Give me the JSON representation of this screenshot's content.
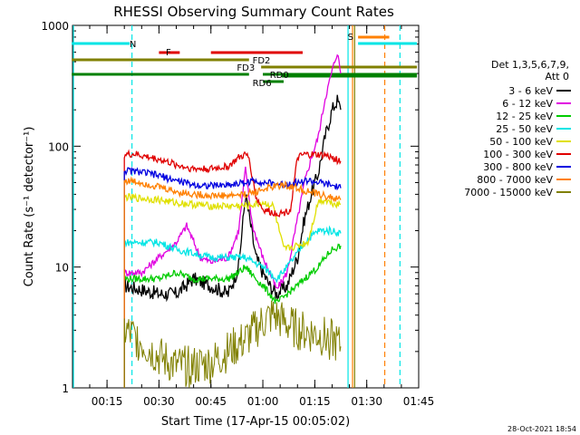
{
  "chart_data": {
    "type": "line",
    "title": "RHESSI Observing Summary Count Rates",
    "xlabel": "Start Time (17-Apr-15 00:05:02)",
    "ylabel": "Count Rate (s⁻¹ detector⁻¹)",
    "yscale": "log",
    "ylim": [
      1,
      1000
    ],
    "xlim_minutes": [
      5.03,
      105
    ],
    "x_ticks": [
      {
        "label": "00:15",
        "min": 15
      },
      {
        "label": "00:30",
        "min": 30
      },
      {
        "label": "00:45",
        "min": 45
      },
      {
        "label": "01:00",
        "min": 60
      },
      {
        "label": "01:15",
        "min": 75
      },
      {
        "label": "01:30",
        "min": 90
      },
      {
        "label": "01:45",
        "min": 105
      }
    ],
    "y_ticks": [
      {
        "label": "1",
        "v": 1
      },
      {
        "label": "10",
        "v": 10
      },
      {
        "label": "100",
        "v": 100
      },
      {
        "label": "1000",
        "v": 1000
      }
    ],
    "legend_header": [
      "Det 1,3,5,6,7,9,",
      "Att 0"
    ],
    "series": [
      {
        "name": "3 - 6 keV",
        "color": "#000000",
        "points": [
          [
            20,
            7
          ],
          [
            25,
            6.5
          ],
          [
            30,
            6
          ],
          [
            35,
            6
          ],
          [
            40,
            8
          ],
          [
            45,
            7
          ],
          [
            50,
            6
          ],
          [
            53,
            10
          ],
          [
            55,
            40
          ],
          [
            58,
            12
          ],
          [
            60,
            9
          ],
          [
            62,
            7
          ],
          [
            64,
            6
          ],
          [
            67,
            7
          ],
          [
            70,
            12
          ],
          [
            72,
            25
          ],
          [
            74,
            40
          ],
          [
            76,
            60
          ],
          [
            78,
            120
          ],
          [
            80,
            200
          ],
          [
            81.5,
            240
          ],
          [
            82.5,
            200
          ]
        ]
      },
      {
        "name": "6 - 12 keV",
        "color": "#e000e0",
        "points": [
          [
            20,
            9
          ],
          [
            25,
            9
          ],
          [
            30,
            12
          ],
          [
            35,
            16
          ],
          [
            38,
            22
          ],
          [
            42,
            12
          ],
          [
            45,
            11
          ],
          [
            50,
            12
          ],
          [
            53,
            20
          ],
          [
            55,
            65
          ],
          [
            57,
            22
          ],
          [
            60,
            12
          ],
          [
            62,
            9
          ],
          [
            64,
            6.5
          ],
          [
            67,
            9
          ],
          [
            70,
            25
          ],
          [
            72,
            50
          ],
          [
            74,
            80
          ],
          [
            76,
            120
          ],
          [
            78,
            250
          ],
          [
            80,
            420
          ],
          [
            81.5,
            600
          ],
          [
            82.5,
            400
          ]
        ]
      },
      {
        "name": "12 - 25 keV",
        "color": "#00cc00",
        "points": [
          [
            20,
            8
          ],
          [
            25,
            8
          ],
          [
            30,
            8
          ],
          [
            35,
            9
          ],
          [
            40,
            8
          ],
          [
            45,
            8
          ],
          [
            50,
            8
          ],
          [
            53,
            9
          ],
          [
            55,
            10
          ],
          [
            58,
            8
          ],
          [
            60,
            7
          ],
          [
            62,
            6
          ],
          [
            64,
            5
          ],
          [
            67,
            6
          ],
          [
            70,
            7
          ],
          [
            72,
            8
          ],
          [
            74,
            9
          ],
          [
            76,
            10
          ],
          [
            78,
            12
          ],
          [
            80,
            14
          ],
          [
            82.5,
            15
          ]
        ]
      },
      {
        "name": "25 - 50 keV",
        "color": "#00e5e5",
        "points": [
          [
            20,
            16
          ],
          [
            25,
            16
          ],
          [
            30,
            16
          ],
          [
            35,
            14
          ],
          [
            40,
            13
          ],
          [
            45,
            12
          ],
          [
            50,
            12
          ],
          [
            55,
            12
          ],
          [
            60,
            10
          ],
          [
            62,
            9
          ],
          [
            64,
            8
          ],
          [
            67,
            10
          ],
          [
            70,
            13
          ],
          [
            72,
            16
          ],
          [
            74,
            18
          ],
          [
            76,
            20
          ],
          [
            78,
            20
          ],
          [
            80,
            20
          ],
          [
            82.5,
            19
          ]
        ]
      },
      {
        "name": "50 - 100 keV",
        "color": "#e0e000",
        "points": [
          [
            20,
            38
          ],
          [
            25,
            37
          ],
          [
            30,
            36
          ],
          [
            35,
            34
          ],
          [
            40,
            33
          ],
          [
            45,
            32
          ],
          [
            50,
            32
          ],
          [
            55,
            32
          ],
          [
            58,
            33
          ],
          [
            60,
            34
          ],
          [
            63,
            32
          ],
          [
            66,
            14
          ],
          [
            70,
            15
          ],
          [
            73,
            16
          ],
          [
            76,
            35
          ],
          [
            78,
            36
          ],
          [
            80,
            34
          ],
          [
            82.5,
            33
          ]
        ]
      },
      {
        "name": "100 - 300 keV",
        "color": "#e00000",
        "points": [
          [
            20,
            85
          ],
          [
            23,
            86
          ],
          [
            26,
            82
          ],
          [
            30,
            78
          ],
          [
            35,
            70
          ],
          [
            40,
            65
          ],
          [
            45,
            65
          ],
          [
            50,
            68
          ],
          [
            53,
            80
          ],
          [
            55,
            85
          ],
          [
            56,
            80
          ],
          [
            58,
            38
          ],
          [
            60,
            30
          ],
          [
            63,
            28
          ],
          [
            66,
            28
          ],
          [
            68,
            30
          ],
          [
            70,
            80
          ],
          [
            72,
            85
          ],
          [
            75,
            85
          ],
          [
            78,
            84
          ],
          [
            80,
            80
          ],
          [
            82.5,
            75
          ]
        ]
      },
      {
        "name": "300 - 800 keV",
        "color": "#0000e0",
        "points": [
          [
            20,
            63
          ],
          [
            25,
            61
          ],
          [
            30,
            57
          ],
          [
            35,
            52
          ],
          [
            40,
            48
          ],
          [
            45,
            47
          ],
          [
            50,
            48
          ],
          [
            55,
            50
          ],
          [
            58,
            52
          ],
          [
            60,
            50
          ],
          [
            63,
            49
          ],
          [
            66,
            48
          ],
          [
            70,
            50
          ],
          [
            73,
            52
          ],
          [
            76,
            50
          ],
          [
            79,
            48
          ],
          [
            82.5,
            45
          ]
        ]
      },
      {
        "name": "800 - 7000 keV",
        "color": "#ff8000",
        "points": [
          [
            20,
            52
          ],
          [
            25,
            50
          ],
          [
            30,
            46
          ],
          [
            35,
            42
          ],
          [
            40,
            40
          ],
          [
            45,
            39
          ],
          [
            50,
            39
          ],
          [
            55,
            40
          ],
          [
            58,
            42
          ],
          [
            60,
            44
          ],
          [
            63,
            46
          ],
          [
            66,
            48
          ],
          [
            70,
            45
          ],
          [
            73,
            42
          ],
          [
            76,
            40
          ],
          [
            79,
            38
          ],
          [
            82.5,
            36
          ]
        ]
      },
      {
        "name": "7000 - 15000 keV",
        "color": "#808000",
        "points": [
          [
            20,
            3
          ],
          [
            24,
            2.5
          ],
          [
            30,
            1.8
          ],
          [
            35,
            1.5
          ],
          [
            40,
            1.5
          ],
          [
            45,
            1.6
          ],
          [
            50,
            2
          ],
          [
            55,
            2.5
          ],
          [
            60,
            3.5
          ],
          [
            63,
            4
          ],
          [
            66,
            3.5
          ],
          [
            70,
            3
          ],
          [
            75,
            2.8
          ],
          [
            80,
            2.5
          ],
          [
            82.5,
            2.2
          ]
        ]
      }
    ],
    "state_bars": [
      {
        "label": "N",
        "color": "#00e5e5",
        "lbl_min": 21.5
      },
      {
        "label": "F",
        "color": "#e00000",
        "lbl_min": 32
      },
      {
        "label": "FD2",
        "color": "#808000",
        "lbl_min": 57
      },
      {
        "label": "FD3",
        "color": "#808000",
        "lbl_min": 52.5
      },
      {
        "label": "RD0",
        "color": "#008000",
        "lbl_min": 62
      },
      {
        "label": "RD6",
        "color": "#008000",
        "lbl_min": 57
      },
      {
        "label": "S",
        "color": "#ff8000",
        "lbl_min": 84.5
      }
    ],
    "vlines": [
      {
        "min": 5.3,
        "color": "#00e5e5",
        "style": "solid"
      },
      {
        "min": 22.2,
        "color": "#00e5e5",
        "style": "dashed"
      },
      {
        "min": 84.6,
        "color": "#00e5e5",
        "style": "solid"
      },
      {
        "min": 85.9,
        "color": "#ff8000",
        "style": "solid"
      },
      {
        "min": 86.5,
        "color": "#808000",
        "style": "solid"
      },
      {
        "min": 95.2,
        "color": "#ff8000",
        "style": "dashed"
      },
      {
        "min": 99.6,
        "color": "#00e5e5",
        "style": "dashed"
      }
    ]
  },
  "footer": {
    "timestamp": "28-Oct-2021 18:54"
  }
}
